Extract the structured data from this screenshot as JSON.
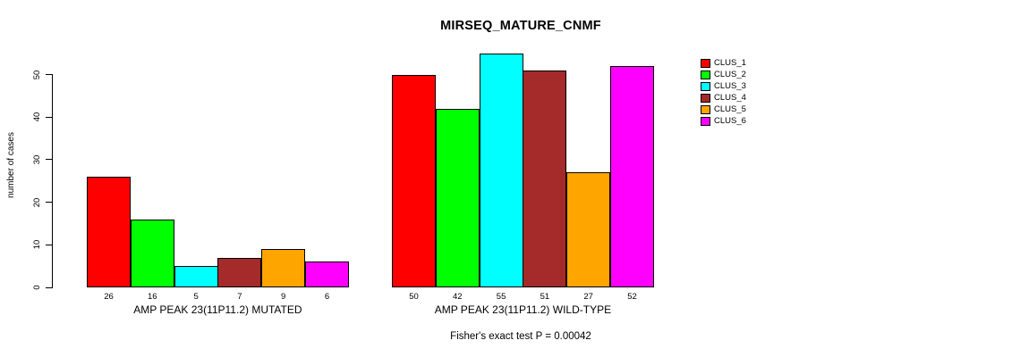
{
  "chart_data": {
    "type": "bar",
    "title": "MIRSEQ_MATURE_CNMF",
    "ylabel": "number of cases",
    "xlabel": "",
    "ylim": [
      0,
      57
    ],
    "yticks": [
      0,
      10,
      20,
      30,
      40,
      50
    ],
    "grid": false,
    "legend_position": "right",
    "series_labels": [
      "CLUS_1",
      "CLUS_2",
      "CLUS_3",
      "CLUS_4",
      "CLUS_5",
      "CLUS_6"
    ],
    "colors": [
      "#FF0000",
      "#00FF00",
      "#00FFFF",
      "#A52A2A",
      "#FFA500",
      "#FF00FF"
    ],
    "groups": [
      {
        "label": "AMP PEAK 23(11P11.2) MUTATED",
        "values": [
          26,
          16,
          5,
          7,
          9,
          6
        ]
      },
      {
        "label": "AMP PEAK 23(11P11.2) WILD-TYPE",
        "values": [
          50,
          42,
          55,
          51,
          27,
          52
        ]
      }
    ],
    "footnote": "Fisher's exact test P = 0.00042"
  }
}
